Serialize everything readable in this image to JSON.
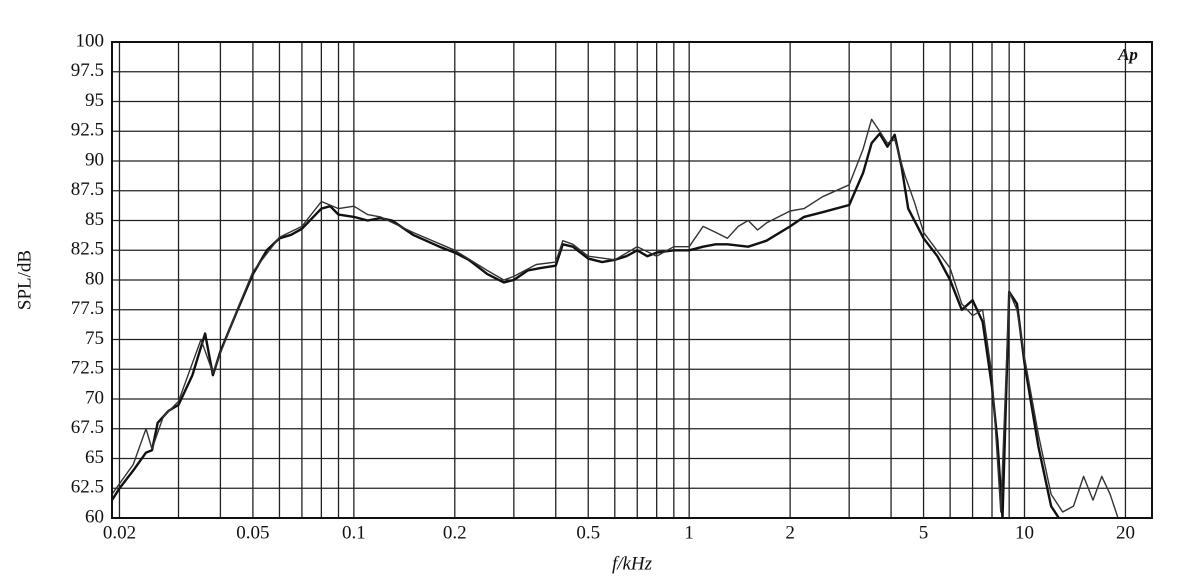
{
  "chart_data": {
    "type": "line",
    "logo": "Ap",
    "ylabel": "SPL/dB",
    "xlabel": "f/kHz",
    "xscale": "log",
    "grid": true,
    "xlim": [
      0.019,
      24
    ],
    "ylim": [
      60,
      100
    ],
    "xticks": [
      0.02,
      0.05,
      0.1,
      0.2,
      0.5,
      1,
      2,
      5,
      10,
      20
    ],
    "xminor_ticks": [
      0.03,
      0.04,
      0.06,
      0.07,
      0.08,
      0.09,
      0.3,
      0.4,
      0.6,
      0.7,
      0.8,
      0.9,
      3,
      4,
      6,
      7,
      8,
      9
    ],
    "yticks": [
      60,
      62.5,
      65,
      67.5,
      70,
      72.5,
      75,
      77.5,
      80,
      82.5,
      85,
      87.5,
      90,
      92.5,
      95,
      97.5,
      100
    ],
    "series": [
      {
        "color": "#111111",
        "x": [
          0.019,
          0.02,
          0.022,
          0.024,
          0.025,
          0.026,
          0.028,
          0.03,
          0.033,
          0.036,
          0.038,
          0.04,
          0.045,
          0.05,
          0.055,
          0.06,
          0.065,
          0.07,
          0.08,
          0.085,
          0.09,
          0.1,
          0.11,
          0.12,
          0.13,
          0.15,
          0.18,
          0.2,
          0.22,
          0.25,
          0.28,
          0.3,
          0.33,
          0.36,
          0.4,
          0.42,
          0.45,
          0.5,
          0.55,
          0.6,
          0.65,
          0.7,
          0.75,
          0.8,
          0.9,
          1,
          1.1,
          1.2,
          1.3,
          1.5,
          1.7,
          2,
          2.2,
          2.5,
          3,
          3.3,
          3.5,
          3.7,
          3.9,
          4.1,
          4.3,
          4.5,
          5,
          5.5,
          6,
          6.5,
          7,
          7.5,
          8,
          8.3,
          8.6,
          9,
          9.5,
          10,
          11,
          12,
          13
        ],
        "values": [
          61.5,
          62.5,
          64,
          65.5,
          65.7,
          68,
          69,
          69.5,
          72,
          75.5,
          72,
          74,
          77.5,
          80.5,
          82.5,
          83.5,
          83.8,
          84.3,
          86,
          86.2,
          85.5,
          85.3,
          85,
          85.2,
          85,
          83.8,
          82.8,
          82.3,
          81.7,
          80.5,
          79.8,
          80,
          80.8,
          81,
          81.2,
          83,
          82.8,
          81.8,
          81.5,
          81.7,
          82,
          82.5,
          82,
          82.3,
          82.5,
          82.5,
          82.8,
          83,
          83,
          82.8,
          83.3,
          84.5,
          85.3,
          85.7,
          86.3,
          89,
          91.5,
          92.3,
          91.2,
          92.2,
          89.5,
          86,
          83.5,
          82,
          80,
          77.5,
          78.3,
          76.5,
          71,
          66.5,
          60,
          79,
          78,
          73,
          66,
          61,
          59.5
        ]
      },
      {
        "color": "#333333",
        "x": [
          0.019,
          0.022,
          0.024,
          0.025,
          0.027,
          0.03,
          0.035,
          0.038,
          0.045,
          0.05,
          0.06,
          0.07,
          0.08,
          0.09,
          0.1,
          0.11,
          0.12,
          0.15,
          0.2,
          0.25,
          0.28,
          0.3,
          0.35,
          0.4,
          0.42,
          0.45,
          0.5,
          0.6,
          0.7,
          0.8,
          0.9,
          1,
          1.1,
          1.2,
          1.3,
          1.4,
          1.5,
          1.6,
          1.7,
          2,
          2.2,
          2.5,
          3,
          3.3,
          3.5,
          3.7,
          3.9,
          4.1,
          4.4,
          4.7,
          5,
          6,
          6.5,
          7,
          7.5,
          8,
          8.5,
          9,
          9.5,
          10,
          11,
          12,
          13,
          14,
          15,
          16,
          17,
          18,
          19
        ],
        "values": [
          62,
          64.5,
          67.5,
          65.8,
          68.5,
          69.8,
          75,
          72.2,
          77.6,
          80.7,
          83.6,
          84.5,
          86.6,
          86,
          86.2,
          85.5,
          85.3,
          84,
          82.5,
          80.8,
          80,
          80.3,
          81.3,
          81.5,
          83.3,
          83,
          82,
          81.7,
          82.8,
          82,
          82.8,
          82.8,
          84.5,
          84,
          83.5,
          84.5,
          85,
          84.2,
          84.8,
          85.8,
          86,
          87,
          88,
          91,
          93.5,
          92.5,
          91.5,
          91.8,
          88.8,
          86.5,
          84,
          81,
          78,
          77,
          77.5,
          72,
          60.5,
          79,
          77.5,
          73.5,
          67,
          62,
          60.5,
          61,
          63.5,
          61.5,
          63.5,
          62,
          60
        ]
      }
    ]
  }
}
